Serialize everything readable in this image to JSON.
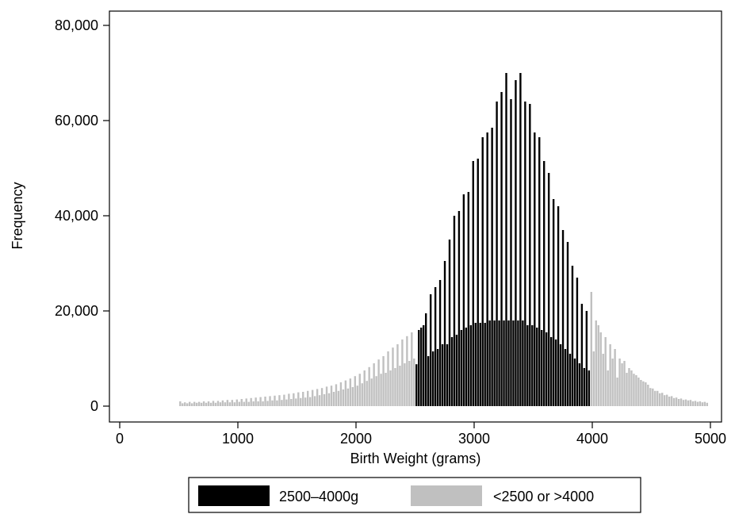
{
  "chart_data": {
    "type": "bar",
    "title": "",
    "xlabel": "Birth Weight (grams)",
    "ylabel": "Frequency",
    "xlim": [
      0,
      5000
    ],
    "ylim": [
      0,
      80000
    ],
    "xticks": [
      "0",
      "1000",
      "2000",
      "3000",
      "4000",
      "5000"
    ],
    "yticks": [
      "0",
      "20,000",
      "40,000",
      "60,000",
      "80,000"
    ],
    "grid": false,
    "legend_position": "bottom",
    "colors": {
      "range": "#000000",
      "outside": "#c0c0c0"
    },
    "series": [
      {
        "name": "2500–4000g",
        "color": "#000000",
        "x": [
          2520,
          2540,
          2560,
          2580,
          2600,
          2620,
          2640,
          2660,
          2680,
          2700,
          2720,
          2740,
          2760,
          2780,
          2800,
          2820,
          2840,
          2860,
          2880,
          2900,
          2920,
          2940,
          2960,
          2980,
          3000,
          3020,
          3040,
          3060,
          3080,
          3100,
          3120,
          3140,
          3160,
          3180,
          3200,
          3220,
          3240,
          3260,
          3280,
          3300,
          3320,
          3340,
          3360,
          3380,
          3400,
          3420,
          3440,
          3460,
          3480,
          3500,
          3520,
          3540,
          3560,
          3580,
          3600,
          3620,
          3640,
          3660,
          3680,
          3700,
          3720,
          3740,
          3760,
          3780,
          3800,
          3820,
          3840,
          3860,
          3880,
          3900,
          3920,
          3940,
          3960,
          3980
        ],
        "values": [
          8800,
          16000,
          16500,
          17000,
          19500,
          10500,
          23500,
          11500,
          25000,
          12000,
          26500,
          13000,
          30500,
          13000,
          35000,
          14500,
          40000,
          15000,
          41000,
          16000,
          44500,
          16500,
          45000,
          17000,
          51500,
          17500,
          52000,
          17500,
          56500,
          17500,
          57500,
          18000,
          58500,
          18000,
          64000,
          18000,
          66000,
          18000,
          70000,
          18000,
          64500,
          18000,
          68500,
          18000,
          70000,
          18000,
          64000,
          17000,
          63500,
          17000,
          57500,
          16500,
          56500,
          16000,
          51500,
          15500,
          49000,
          14500,
          43500,
          14000,
          42000,
          13000,
          37000,
          12000,
          34500,
          11000,
          29500,
          10000,
          27000,
          9000,
          21500,
          8000,
          20000,
          7500
        ]
      },
      {
        "name": "<2500 or >4000",
        "color": "#c0c0c0",
        "x": [
          520,
          540,
          560,
          580,
          600,
          620,
          640,
          660,
          680,
          700,
          720,
          740,
          760,
          780,
          800,
          820,
          840,
          860,
          880,
          900,
          920,
          940,
          960,
          980,
          1000,
          1020,
          1040,
          1060,
          1080,
          1100,
          1120,
          1140,
          1160,
          1180,
          1200,
          1220,
          1240,
          1260,
          1280,
          1300,
          1320,
          1340,
          1360,
          1380,
          1400,
          1420,
          1440,
          1460,
          1480,
          1500,
          1520,
          1540,
          1560,
          1580,
          1600,
          1620,
          1640,
          1660,
          1680,
          1700,
          1720,
          1740,
          1760,
          1780,
          1800,
          1820,
          1840,
          1860,
          1880,
          1900,
          1920,
          1940,
          1960,
          1980,
          2000,
          2020,
          2040,
          2060,
          2080,
          2100,
          2120,
          2140,
          2160,
          2180,
          2200,
          2220,
          2240,
          2260,
          2280,
          2300,
          2320,
          2340,
          2360,
          2380,
          2400,
          2420,
          2440,
          2460,
          2480,
          2500,
          4000,
          4020,
          4040,
          4060,
          4080,
          4100,
          4120,
          4140,
          4160,
          4180,
          4200,
          4220,
          4240,
          4260,
          4280,
          4300,
          4320,
          4340,
          4360,
          4380,
          4400,
          4420,
          4440,
          4460,
          4480,
          4500,
          4520,
          4540,
          4560,
          4580,
          4600,
          4620,
          4640,
          4660,
          4680,
          4700,
          4720,
          4740,
          4760,
          4780,
          4800,
          4820,
          4840,
          4860,
          4880,
          4900,
          4920,
          4940,
          4960,
          4980
        ],
        "values": [
          1000,
          600,
          800,
          600,
          900,
          600,
          900,
          700,
          900,
          700,
          1000,
          700,
          1000,
          700,
          1100,
          700,
          1100,
          800,
          1200,
          800,
          1300,
          800,
          1300,
          800,
          1400,
          900,
          1500,
          900,
          1600,
          900,
          1700,
          1000,
          1800,
          1000,
          1900,
          1000,
          2000,
          1100,
          2100,
          1200,
          2200,
          1200,
          2300,
          1300,
          2400,
          1400,
          2600,
          1500,
          2700,
          1600,
          2900,
          1700,
          3000,
          1800,
          3200,
          1900,
          3400,
          2100,
          3600,
          2300,
          3800,
          2500,
          4100,
          2700,
          4300,
          3000,
          4600,
          3200,
          5000,
          3500,
          5400,
          3700,
          5800,
          4000,
          6300,
          4300,
          6800,
          4800,
          7500,
          5300,
          8200,
          5800,
          9000,
          6300,
          9800,
          6800,
          10500,
          7000,
          11500,
          7500,
          12300,
          8000,
          13000,
          8500,
          14000,
          9000,
          14700,
          9500,
          15500,
          10000,
          24000,
          11500,
          18000,
          17000,
          15500,
          11000,
          14500,
          7500,
          13000,
          10000,
          12000,
          6000,
          10000,
          9000,
          9500,
          7000,
          8000,
          7500,
          6800,
          6500,
          6000,
          5500,
          5200,
          5000,
          4500,
          3800,
          3700,
          3200,
          3200,
          2700,
          2800,
          2300,
          2400,
          2000,
          2100,
          1700,
          1800,
          1500,
          1600,
          1300,
          1400,
          1200,
          1300,
          1000,
          1100,
          900,
          1000,
          800,
          900,
          700
        ]
      }
    ]
  }
}
